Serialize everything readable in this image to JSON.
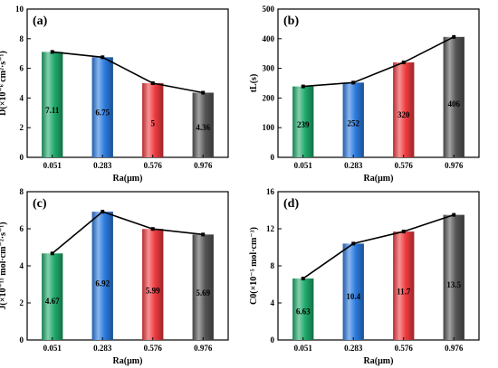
{
  "chart_data": [
    {
      "type": "bar",
      "panel_label": "(a)",
      "categories": [
        "0.051",
        "0.283",
        "0.576",
        "0.976"
      ],
      "values": [
        7.11,
        6.75,
        5,
        4.36
      ],
      "value_labels": [
        "7.11",
        "6.75",
        "5",
        "4.36"
      ],
      "xlabel": "Ra(μm)",
      "ylabel": "D(×10⁻⁶ cm²·s⁻¹)",
      "ylim": [
        0,
        10
      ],
      "yticks": [
        "0",
        "2",
        "4",
        "6",
        "8",
        "10"
      ],
      "overlay_line": true,
      "grid": false
    },
    {
      "type": "bar",
      "panel_label": "(b)",
      "categories": [
        "0.051",
        "0.283",
        "0.576",
        "0.976"
      ],
      "values": [
        239,
        252,
        320,
        406
      ],
      "value_labels": [
        "239",
        "252",
        "320",
        "406"
      ],
      "xlabel": "Ra(μm)",
      "ylabel": "tL(s)",
      "ylim": [
        0,
        500
      ],
      "yticks": [
        "0",
        "100",
        "200",
        "300",
        "400",
        "500"
      ],
      "overlay_line": true,
      "grid": false
    },
    {
      "type": "bar",
      "panel_label": "(c)",
      "categories": [
        "0.051",
        "0.283",
        "0.576",
        "0.976"
      ],
      "values": [
        4.67,
        6.92,
        5.99,
        5.69
      ],
      "value_labels": [
        "4.67",
        "6.92",
        "5.99",
        "5.69"
      ],
      "xlabel": "Ra(μm)",
      "ylabel": "J(×10⁻¹¹ mol·cm⁻²·s⁻¹)",
      "ylim": [
        0,
        8
      ],
      "yticks": [
        "0",
        "2",
        "4",
        "6",
        "8"
      ],
      "overlay_line": true,
      "grid": false
    },
    {
      "type": "bar",
      "panel_label": "(d)",
      "categories": [
        "0.051",
        "0.283",
        "0.576",
        "0.976"
      ],
      "values": [
        6.63,
        10.4,
        11.7,
        13.5
      ],
      "value_labels": [
        "6.63",
        "10.4",
        "11.7",
        "13.5"
      ],
      "xlabel": "Ra(μm)",
      "ylabel": "C0(×10⁻⁵ mol·cm⁻³)",
      "ylim": [
        0,
        16
      ],
      "yticks": [
        "0",
        "4",
        "8",
        "12",
        "16"
      ],
      "overlay_line": true,
      "grid": false
    }
  ],
  "colors": {
    "bar_green": "#1faa6b",
    "bar_blue": "#2b7be0",
    "bar_red": "#ef3b3f",
    "bar_gray": "#555555",
    "line": "#000000"
  }
}
